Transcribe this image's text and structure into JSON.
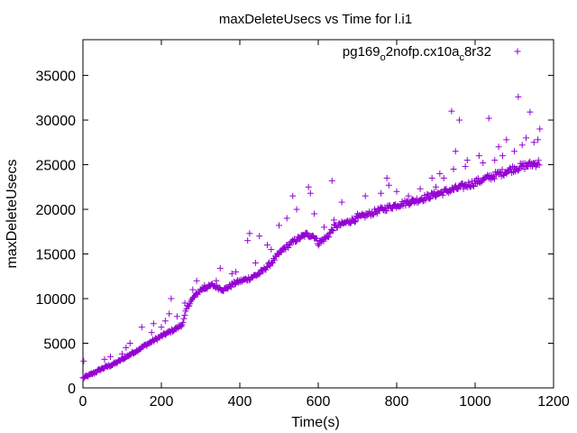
{
  "chart_data": {
    "type": "scatter",
    "title": "maxDeleteUsecs vs Time for l.i1",
    "xlabel": "Time(s)",
    "ylabel": "maxDeleteUsecs",
    "xlim": [
      0,
      1200
    ],
    "ylim": [
      0,
      39000
    ],
    "xticks": [
      0,
      200,
      400,
      600,
      800,
      1000,
      1200
    ],
    "yticks": [
      0,
      5000,
      10000,
      15000,
      20000,
      25000,
      30000,
      35000
    ],
    "grid": false,
    "legend": "top-right",
    "marker": "plus",
    "color": "#9400d3",
    "series": [
      {
        "name": "pg169_o2nofp.cx10a_c8r32",
        "name_parts": {
          "base1": "pg169",
          "sub1": "o",
          "mid": "2nofp.cx10a",
          "sub2": "c",
          "tail": "8r32"
        },
        "trend": [
          [
            0,
            1100
          ],
          [
            20,
            1500
          ],
          [
            50,
            2200
          ],
          [
            80,
            2700
          ],
          [
            100,
            3200
          ],
          [
            130,
            4000
          ],
          [
            160,
            4800
          ],
          [
            200,
            5800
          ],
          [
            240,
            6700
          ],
          [
            255,
            7200
          ],
          [
            265,
            9000
          ],
          [
            280,
            10000
          ],
          [
            300,
            11000
          ],
          [
            330,
            11500
          ],
          [
            360,
            11000
          ],
          [
            390,
            11800
          ],
          [
            420,
            12200
          ],
          [
            450,
            12800
          ],
          [
            480,
            14000
          ],
          [
            510,
            15500
          ],
          [
            540,
            16500
          ],
          [
            570,
            17200
          ],
          [
            590,
            17000
          ],
          [
            600,
            16200
          ],
          [
            625,
            17000
          ],
          [
            640,
            18000
          ],
          [
            670,
            18500
          ],
          [
            700,
            19000
          ],
          [
            750,
            19800
          ],
          [
            800,
            20500
          ],
          [
            850,
            21000
          ],
          [
            900,
            21700
          ],
          [
            950,
            22300
          ],
          [
            1000,
            23000
          ],
          [
            1050,
            23800
          ],
          [
            1100,
            24600
          ],
          [
            1160,
            25200
          ]
        ],
        "outliers": [
          [
            2,
            3000
          ],
          [
            55,
            3200
          ],
          [
            70,
            3500
          ],
          [
            100,
            3800
          ],
          [
            110,
            4500
          ],
          [
            120,
            5000
          ],
          [
            150,
            6800
          ],
          [
            175,
            6200
          ],
          [
            180,
            7200
          ],
          [
            200,
            6800
          ],
          [
            210,
            7500
          ],
          [
            220,
            8300
          ],
          [
            225,
            10000
          ],
          [
            240,
            8000
          ],
          [
            260,
            9500
          ],
          [
            280,
            11000
          ],
          [
            290,
            12000
          ],
          [
            310,
            11500
          ],
          [
            340,
            12000
          ],
          [
            350,
            13400
          ],
          [
            380,
            12800
          ],
          [
            390,
            13000
          ],
          [
            420,
            16500
          ],
          [
            425,
            17300
          ],
          [
            440,
            14000
          ],
          [
            450,
            17000
          ],
          [
            470,
            16000
          ],
          [
            480,
            15500
          ],
          [
            500,
            18200
          ],
          [
            520,
            19000
          ],
          [
            535,
            21500
          ],
          [
            545,
            20000
          ],
          [
            575,
            22500
          ],
          [
            580,
            21800
          ],
          [
            590,
            19500
          ],
          [
            615,
            18000
          ],
          [
            635,
            23200
          ],
          [
            640,
            18800
          ],
          [
            660,
            20800
          ],
          [
            700,
            19500
          ],
          [
            720,
            21500
          ],
          [
            760,
            21800
          ],
          [
            775,
            23500
          ],
          [
            780,
            22700
          ],
          [
            800,
            22000
          ],
          [
            830,
            21500
          ],
          [
            860,
            22300
          ],
          [
            890,
            23500
          ],
          [
            900,
            22500
          ],
          [
            910,
            24000
          ],
          [
            920,
            23500
          ],
          [
            940,
            31000
          ],
          [
            945,
            24500
          ],
          [
            950,
            26500
          ],
          [
            960,
            30000
          ],
          [
            975,
            24800
          ],
          [
            980,
            25500
          ],
          [
            1010,
            26000
          ],
          [
            1020,
            25200
          ],
          [
            1035,
            30200
          ],
          [
            1050,
            25500
          ],
          [
            1060,
            27000
          ],
          [
            1070,
            26000
          ],
          [
            1080,
            27800
          ],
          [
            1100,
            26500
          ],
          [
            1110,
            32600
          ],
          [
            1120,
            27200
          ],
          [
            1130,
            28000
          ],
          [
            1140,
            30900
          ],
          [
            1150,
            27500
          ],
          [
            1160,
            27800
          ],
          [
            1165,
            29000
          ]
        ]
      }
    ]
  }
}
